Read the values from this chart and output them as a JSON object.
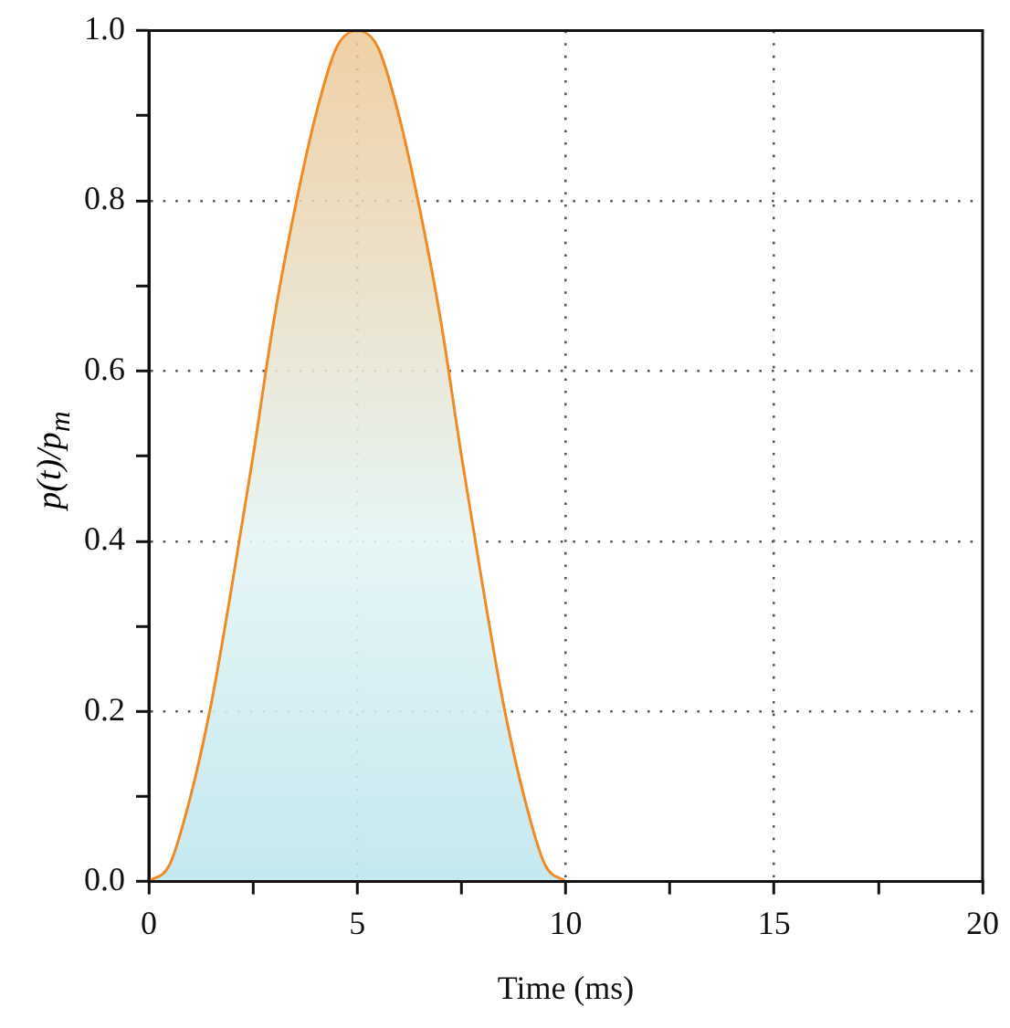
{
  "chart_data": {
    "type": "area",
    "xlabel": "Time (ms)",
    "ylabel": "p(t)/p$_{m}$",
    "x": [
      0,
      0.5,
      1,
      1.5,
      2,
      2.5,
      3,
      3.5,
      4,
      4.5,
      5,
      5.5,
      6,
      6.5,
      7,
      7.5,
      8,
      8.5,
      9,
      9.5,
      10
    ],
    "series": [
      {
        "color": "#f08a24",
        "values": [
          0,
          0.02,
          0.1,
          0.21,
          0.35,
          0.5,
          0.66,
          0.79,
          0.9,
          0.98,
          1,
          0.98,
          0.9,
          0.79,
          0.66,
          0.5,
          0.35,
          0.21,
          0.1,
          0.02,
          0
        ]
      }
    ],
    "xlim": [
      0,
      20
    ],
    "xticks": [
      0,
      {
        "value": 2.5,
        "label": null
      },
      5,
      {
        "value": 7.5,
        "label": null
      },
      10,
      {
        "value": 12.5,
        "label": null
      },
      15,
      {
        "value": 17.5,
        "label": null
      },
      20
    ],
    "ylim": [
      0,
      1
    ],
    "yticks": [
      {
        "value": 0,
        "label": "0.0"
      },
      {
        "value": 0.1,
        "label": null
      },
      0.2,
      {
        "value": 0.3,
        "label": null
      },
      0.4,
      {
        "value": 0.5,
        "label": null
      },
      0.6,
      {
        "value": 0.7,
        "label": null
      },
      0.8,
      {
        "value": 0.9,
        "label": null
      },
      {
        "value": 1,
        "label": "1.0"
      }
    ],
    "grid": true,
    "legend": false,
    "marker": "none",
    "line_style": "solid"
  }
}
